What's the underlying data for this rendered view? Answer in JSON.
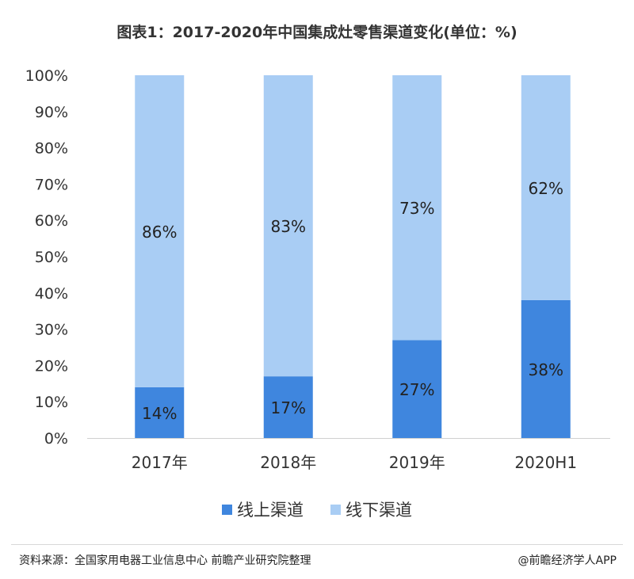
{
  "title": "图表1：2017-2020年中国集成灶零售渠道变化(单位：%)",
  "source": "资料来源：全国家用电器工业信息中心 前瞻产业研究院整理",
  "brand": "@前瞻经济学人APP",
  "colors": {
    "online": "#3f86de",
    "offline": "#a9cdf4"
  },
  "chart_data": {
    "type": "bar",
    "stacked": true,
    "title": "图表1：2017-2020年中国集成灶零售渠道变化(单位：%)",
    "categories": [
      "2017年",
      "2018年",
      "2019年",
      "2020H1"
    ],
    "series": [
      {
        "name": "线上渠道",
        "values": [
          14,
          17,
          27,
          38
        ],
        "labels": [
          "14%",
          "17%",
          "27%",
          "38%"
        ]
      },
      {
        "name": "线下渠道",
        "values": [
          86,
          83,
          73,
          62
        ],
        "labels": [
          "86%",
          "83%",
          "73%",
          "62%"
        ]
      }
    ],
    "ylim": [
      0,
      100
    ],
    "yticks": [
      "0%",
      "10%",
      "20%",
      "30%",
      "40%",
      "50%",
      "60%",
      "70%",
      "80%",
      "90%",
      "100%"
    ],
    "grid": false,
    "legend": "bottom"
  }
}
